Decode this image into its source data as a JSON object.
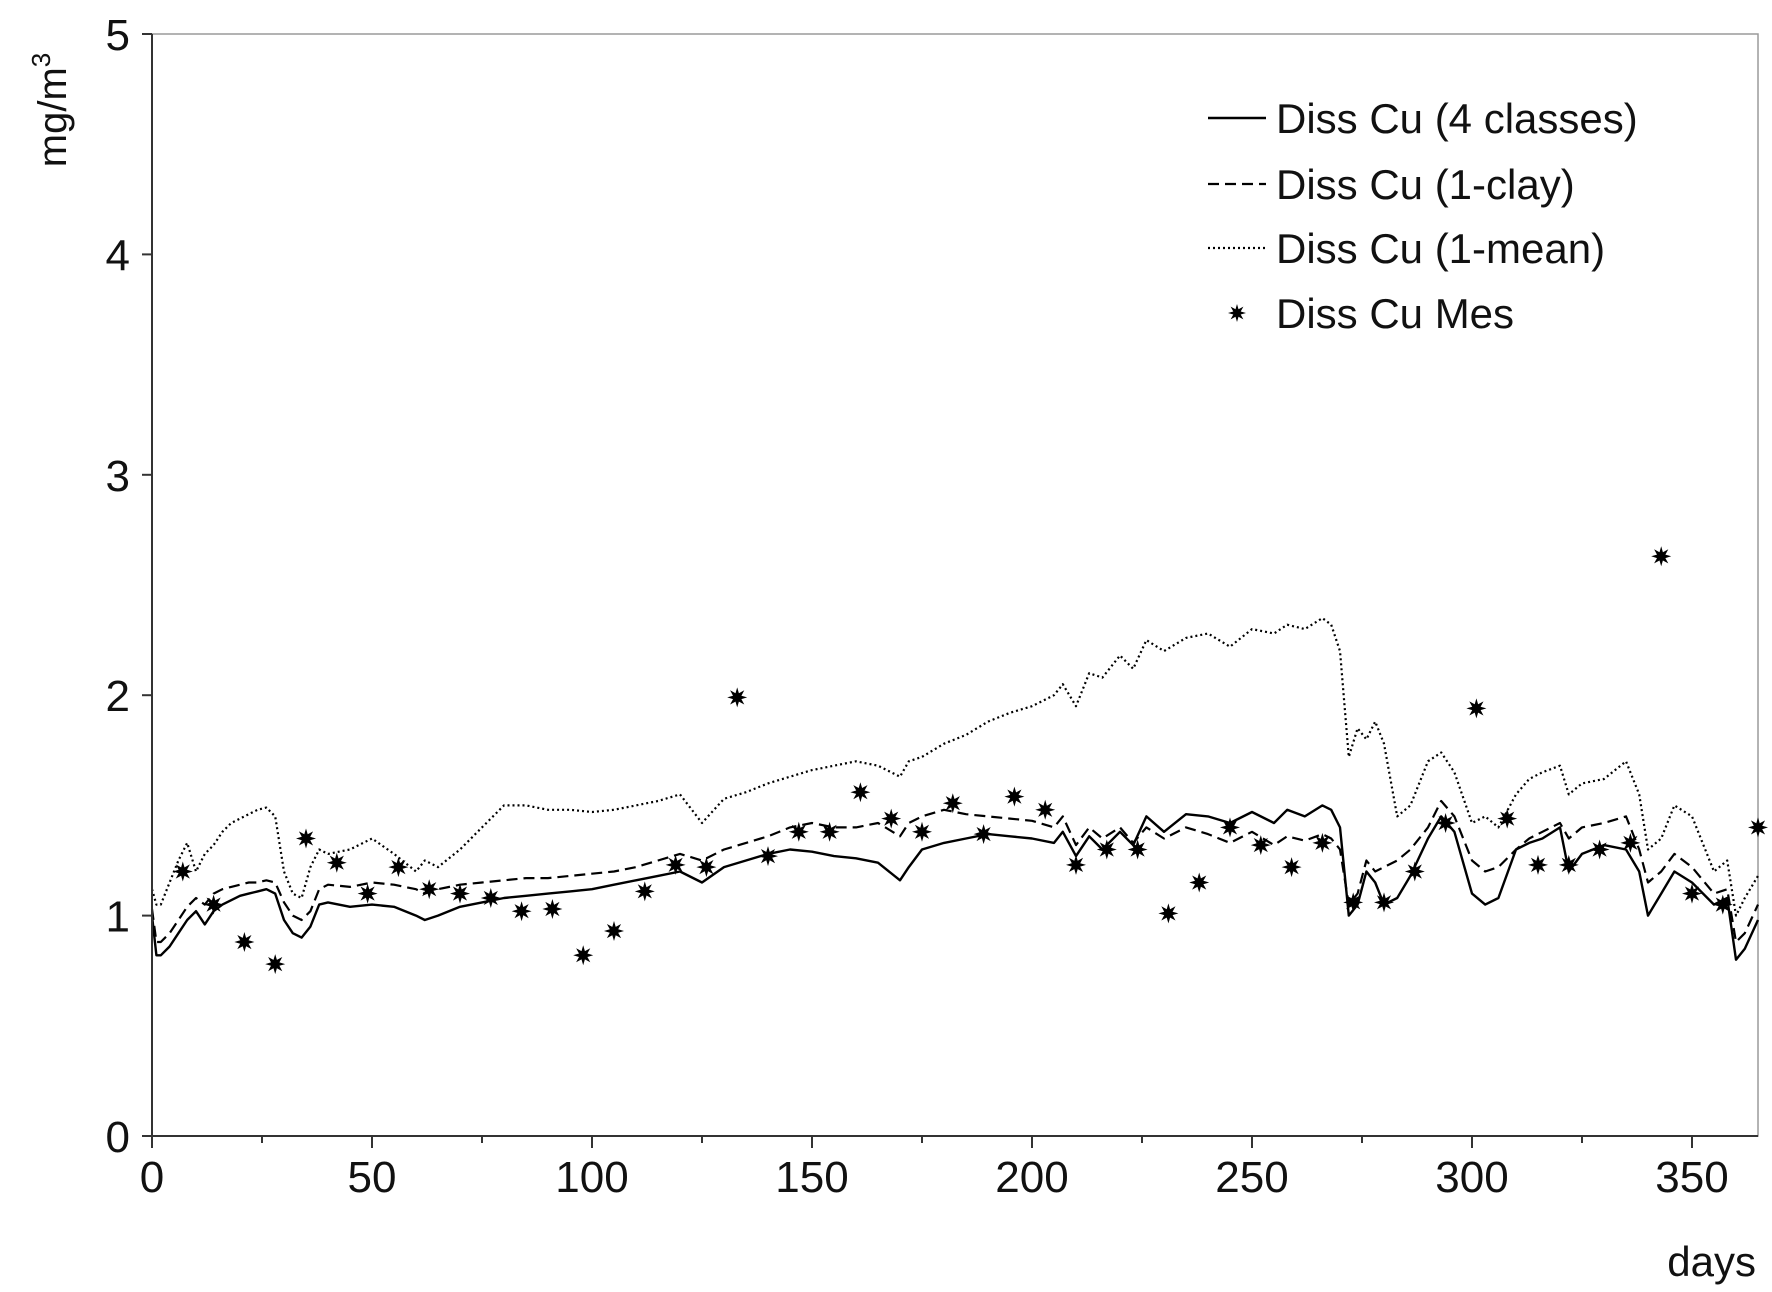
{
  "chart_data": {
    "type": "line",
    "ylabel": "mg/m",
    "ylabel_sup": "3",
    "xlabel": "days",
    "xlim": [
      0,
      365
    ],
    "ylim": [
      0,
      5
    ],
    "x_ticks": [
      0,
      50,
      100,
      150,
      200,
      250,
      300,
      350
    ],
    "y_ticks": [
      0,
      1,
      2,
      3,
      4,
      5
    ],
    "grid": false,
    "legend_position": "top-right",
    "series": [
      {
        "name": "Diss Cu (4 classes)",
        "style": "solid",
        "x": [
          0,
          1,
          2,
          4,
          6,
          8,
          10,
          12,
          14,
          16,
          18,
          20,
          22,
          24,
          26,
          28,
          30,
          32,
          34,
          36,
          38,
          40,
          45,
          50,
          55,
          60,
          62,
          65,
          70,
          75,
          80,
          85,
          90,
          95,
          100,
          105,
          110,
          115,
          120,
          125,
          130,
          135,
          140,
          145,
          150,
          155,
          160,
          165,
          170,
          172,
          175,
          180,
          185,
          190,
          195,
          200,
          205,
          207,
          210,
          213,
          216,
          220,
          223,
          226,
          230,
          235,
          240,
          245,
          250,
          255,
          258,
          262,
          266,
          268,
          270,
          272,
          274,
          276,
          278,
          280,
          283,
          286,
          290,
          293,
          296,
          300,
          303,
          306,
          310,
          313,
          316,
          320,
          322,
          325,
          330,
          335,
          338,
          340,
          343,
          346,
          350,
          355,
          358,
          360,
          362,
          365
        ],
        "y": [
          1.0,
          0.82,
          0.82,
          0.86,
          0.92,
          0.98,
          1.02,
          0.96,
          1.02,
          1.05,
          1.07,
          1.09,
          1.1,
          1.11,
          1.12,
          1.1,
          0.98,
          0.92,
          0.9,
          0.95,
          1.05,
          1.06,
          1.04,
          1.05,
          1.04,
          1.0,
          0.98,
          1.0,
          1.04,
          1.06,
          1.08,
          1.09,
          1.1,
          1.11,
          1.12,
          1.14,
          1.16,
          1.18,
          1.2,
          1.15,
          1.22,
          1.25,
          1.28,
          1.3,
          1.29,
          1.27,
          1.26,
          1.24,
          1.16,
          1.22,
          1.3,
          1.33,
          1.35,
          1.37,
          1.36,
          1.35,
          1.33,
          1.38,
          1.27,
          1.36,
          1.3,
          1.38,
          1.32,
          1.45,
          1.38,
          1.46,
          1.45,
          1.42,
          1.47,
          1.42,
          1.48,
          1.45,
          1.5,
          1.48,
          1.4,
          1.0,
          1.05,
          1.2,
          1.15,
          1.05,
          1.08,
          1.18,
          1.35,
          1.45,
          1.38,
          1.1,
          1.05,
          1.08,
          1.3,
          1.33,
          1.35,
          1.4,
          1.2,
          1.28,
          1.32,
          1.3,
          1.2,
          1.0,
          1.1,
          1.2,
          1.15,
          1.05,
          1.08,
          0.8,
          0.85,
          0.98
        ]
      },
      {
        "name": "Diss Cu (1-clay)",
        "style": "dashed",
        "x": [
          0,
          1,
          2,
          4,
          6,
          8,
          10,
          12,
          14,
          16,
          18,
          20,
          22,
          24,
          26,
          28,
          30,
          32,
          34,
          36,
          38,
          40,
          45,
          50,
          55,
          60,
          62,
          65,
          70,
          75,
          80,
          85,
          90,
          95,
          100,
          105,
          110,
          115,
          120,
          125,
          130,
          135,
          140,
          145,
          150,
          155,
          160,
          165,
          170,
          172,
          175,
          180,
          185,
          190,
          195,
          200,
          205,
          207,
          210,
          213,
          216,
          220,
          223,
          226,
          230,
          235,
          240,
          245,
          250,
          255,
          258,
          262,
          266,
          268,
          270,
          272,
          274,
          276,
          278,
          280,
          283,
          286,
          290,
          293,
          296,
          300,
          303,
          306,
          310,
          313,
          316,
          320,
          322,
          325,
          330,
          335,
          338,
          340,
          343,
          346,
          350,
          355,
          358,
          360,
          362,
          365
        ],
        "y": [
          1.03,
          0.88,
          0.88,
          0.92,
          0.98,
          1.04,
          1.08,
          1.05,
          1.1,
          1.12,
          1.13,
          1.14,
          1.15,
          1.15,
          1.16,
          1.15,
          1.06,
          1.0,
          0.98,
          1.02,
          1.12,
          1.14,
          1.13,
          1.15,
          1.14,
          1.12,
          1.1,
          1.12,
          1.14,
          1.15,
          1.16,
          1.17,
          1.17,
          1.18,
          1.19,
          1.2,
          1.22,
          1.25,
          1.28,
          1.25,
          1.3,
          1.33,
          1.36,
          1.4,
          1.42,
          1.4,
          1.4,
          1.42,
          1.36,
          1.42,
          1.45,
          1.48,
          1.46,
          1.45,
          1.44,
          1.43,
          1.4,
          1.45,
          1.32,
          1.4,
          1.35,
          1.4,
          1.33,
          1.4,
          1.35,
          1.4,
          1.37,
          1.33,
          1.38,
          1.32,
          1.36,
          1.34,
          1.37,
          1.35,
          1.3,
          1.05,
          1.1,
          1.25,
          1.2,
          1.22,
          1.25,
          1.3,
          1.4,
          1.52,
          1.45,
          1.25,
          1.2,
          1.22,
          1.3,
          1.35,
          1.38,
          1.42,
          1.35,
          1.4,
          1.42,
          1.45,
          1.3,
          1.15,
          1.2,
          1.28,
          1.22,
          1.1,
          1.12,
          0.88,
          0.92,
          1.05
        ]
      },
      {
        "name": "Diss Cu (1-mean)",
        "style": "dotted",
        "x": [
          0,
          1,
          2,
          4,
          6,
          8,
          10,
          12,
          14,
          16,
          18,
          20,
          22,
          24,
          26,
          28,
          30,
          32,
          34,
          36,
          38,
          40,
          45,
          50,
          55,
          60,
          62,
          65,
          70,
          75,
          80,
          85,
          90,
          95,
          100,
          105,
          110,
          115,
          120,
          125,
          130,
          135,
          140,
          145,
          150,
          155,
          160,
          165,
          170,
          172,
          175,
          180,
          185,
          190,
          195,
          200,
          205,
          207,
          210,
          213,
          216,
          220,
          223,
          226,
          230,
          235,
          240,
          245,
          250,
          255,
          258,
          262,
          266,
          268,
          270,
          272,
          274,
          276,
          278,
          280,
          283,
          286,
          290,
          293,
          296,
          300,
          303,
          306,
          310,
          313,
          316,
          320,
          322,
          325,
          330,
          335,
          338,
          340,
          343,
          346,
          350,
          355,
          358,
          360,
          362,
          365
        ],
        "y": [
          1.12,
          1.05,
          1.05,
          1.15,
          1.25,
          1.33,
          1.2,
          1.28,
          1.32,
          1.38,
          1.42,
          1.44,
          1.46,
          1.48,
          1.49,
          1.45,
          1.2,
          1.1,
          1.08,
          1.22,
          1.3,
          1.28,
          1.3,
          1.35,
          1.28,
          1.2,
          1.25,
          1.22,
          1.3,
          1.4,
          1.5,
          1.5,
          1.48,
          1.48,
          1.47,
          1.48,
          1.5,
          1.52,
          1.55,
          1.42,
          1.53,
          1.56,
          1.6,
          1.63,
          1.66,
          1.68,
          1.7,
          1.68,
          1.63,
          1.7,
          1.72,
          1.78,
          1.82,
          1.88,
          1.92,
          1.95,
          2.0,
          2.05,
          1.95,
          2.1,
          2.08,
          2.18,
          2.12,
          2.25,
          2.2,
          2.26,
          2.28,
          2.22,
          2.3,
          2.28,
          2.32,
          2.3,
          2.35,
          2.32,
          2.2,
          1.72,
          1.85,
          1.8,
          1.88,
          1.78,
          1.45,
          1.5,
          1.7,
          1.74,
          1.65,
          1.42,
          1.45,
          1.4,
          1.55,
          1.62,
          1.65,
          1.68,
          1.55,
          1.6,
          1.62,
          1.7,
          1.55,
          1.3,
          1.35,
          1.5,
          1.45,
          1.2,
          1.25,
          1.0,
          1.08,
          1.18
        ]
      },
      {
        "name": "Diss Cu Mes",
        "style": "markers",
        "x": [
          7,
          14,
          21,
          28,
          35,
          42,
          49,
          56,
          63,
          70,
          77,
          84,
          91,
          98,
          105,
          112,
          119,
          126,
          133,
          140,
          147,
          154,
          161,
          168,
          175,
          182,
          189,
          196,
          203,
          210,
          217,
          224,
          231,
          238,
          245,
          252,
          259,
          266,
          273,
          280,
          287,
          294,
          301,
          308,
          315,
          322,
          329,
          336,
          343,
          350,
          357,
          365
        ],
        "y": [
          1.2,
          1.05,
          0.88,
          0.78,
          1.35,
          1.24,
          1.1,
          1.22,
          1.12,
          1.1,
          1.08,
          1.02,
          1.03,
          0.82,
          0.93,
          1.11,
          1.23,
          1.22,
          1.99,
          1.27,
          1.38,
          1.38,
          1.56,
          1.44,
          1.38,
          1.51,
          1.37,
          1.54,
          1.48,
          1.23,
          1.3,
          1.3,
          1.01,
          1.15,
          1.4,
          1.32,
          1.22,
          1.33,
          1.06,
          1.06,
          1.2,
          1.42,
          1.94,
          1.44,
          1.23,
          1.23,
          1.3,
          1.33,
          2.63,
          1.1,
          1.05,
          1.4
        ]
      }
    ]
  }
}
